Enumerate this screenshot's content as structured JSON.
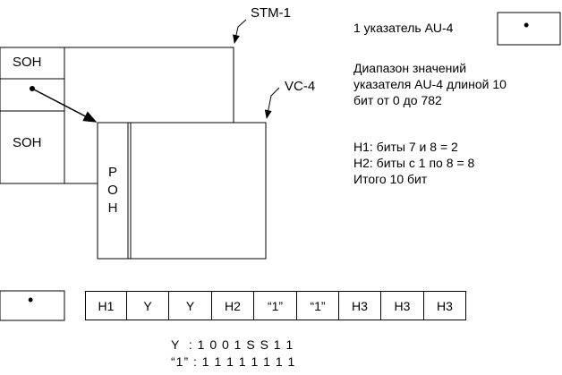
{
  "labels": {
    "stm": "STM-1",
    "vc": "VC-4",
    "soh_top": "SOH",
    "soh_bottom": "SOH",
    "poh": [
      "P",
      "O",
      "H"
    ]
  },
  "legend": {
    "pointer_label": "1 указатель AU-4",
    "pointer_symbol": "•"
  },
  "info": {
    "range_lines": [
      "Диапазон значений",
      "указателя AU-4 длиной 10",
      "бит от 0 до 782"
    ],
    "bits_lines": [
      "H1: биты 7 и 8 = 2",
      "H2: биты с 1 по 8 = 8",
      "Итого 10 бит"
    ]
  },
  "sequence": {
    "pointer_symbol": "•",
    "cells": [
      "H1",
      "Y",
      "Y",
      "H2",
      "“1”",
      "“1”",
      "H3",
      "H3",
      "H3"
    ]
  },
  "codes": {
    "y_line": "Y  : 1 0 0 1 S S 1 1",
    "one_line": "“1” : 1 1 1 1 1 1 1 1"
  }
}
